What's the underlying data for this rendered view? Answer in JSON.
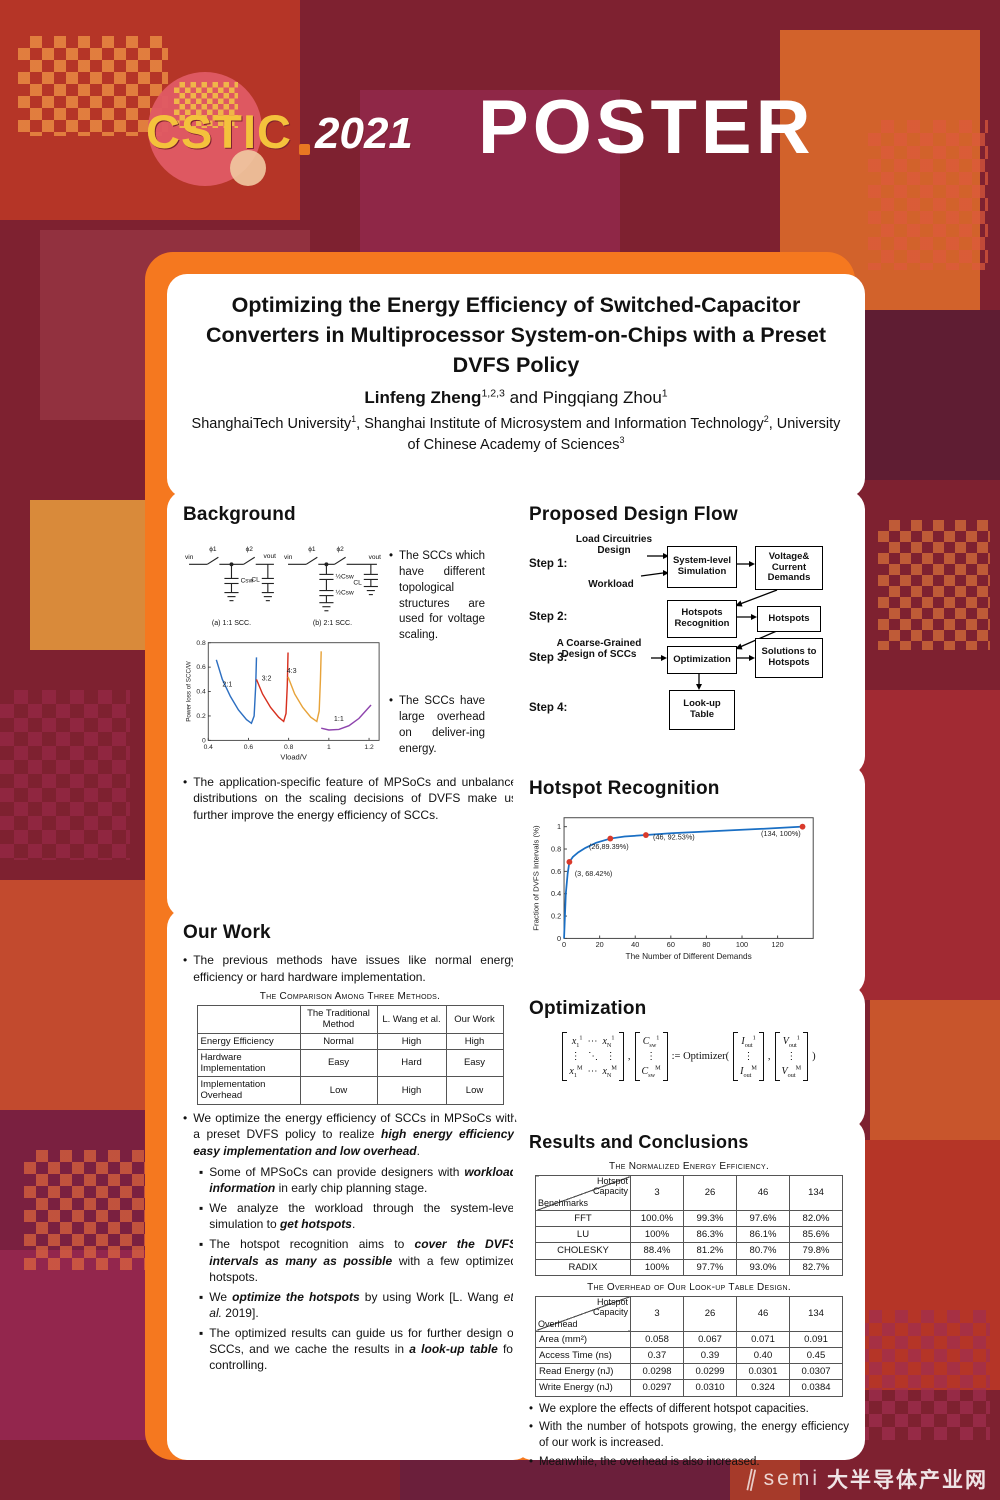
{
  "banner": {
    "logo_text": "CSTIC",
    "logo_year": "2021",
    "poster_label": "POSTER"
  },
  "watermark": {
    "brand": "semi",
    "text": "大半导体产业网"
  },
  "title_block": {
    "title": "Optimizing the Energy Efficiency of Switched-Capacitor Converters in Multiprocessor System-on-Chips with a Preset DVFS Policy",
    "authors_html": "<b>Linfeng Zheng</b><sup>1,2,3</sup> and Pingqiang Zhou<sup>1</sup>",
    "affiliations_html": "ShanghaiTech University<sup>1</sup>, Shanghai Institute of Microsystem and Information Technology<sup>2</sup>, University of Chinese Academy of Sciences<sup>3</sup>"
  },
  "background": {
    "heading": "Background",
    "side_bullet1": "The SCCs which have different topological structures are used for voltage scaling.",
    "side_bullet2": "The SCCs have large overhead on deliver-ing energy.",
    "bottom_bullet": "The application-specific feature of MPSoCs and unbalance distributions on the scaling decisions of DVFS make us further improve the energy efficiency of SCCs.",
    "figure": {
      "vin": "vin",
      "vout": "vout",
      "phi1": "ϕ1",
      "phi2": "ϕ2",
      "csw": "Csw",
      "cl": "CL",
      "half_csw": "½Csw",
      "caption_a": "(a) 1:1 SCC.",
      "caption_b": "(b) 2:1 SCC."
    }
  },
  "our_work": {
    "heading": "Our Work",
    "bullet1": "The previous methods have issues like normal energy efficiency or hard hardware implementation.",
    "table": {
      "caption": "The Comparison Among Three Methods.",
      "columns": [
        "",
        "The Traditional Method",
        "L. Wang et al.",
        "Our Work"
      ],
      "rows": [
        [
          "Energy Efficiency",
          "Normal",
          "High",
          "High"
        ],
        [
          "Hardware Implementation",
          "Easy",
          "Hard",
          "Easy"
        ],
        [
          "Implementation Overhead",
          "Low",
          "High",
          "Low"
        ]
      ]
    },
    "bullet2_html": "We optimize the energy efficiency of SCCs in MPSoCs with a preset DVFS policy to realize <b><i>high energy efficiency, easy implementation and low overhead</i></b>.",
    "sub_bullets_html": [
      "Some of MPSoCs can provide designers with <b><i>workload information</i></b> in early chip planning stage.",
      "We analyze the workload through the system-level simulation to <b><i>get hotspots</i></b>.",
      "The hotspot recognition aims to <b><i>cover the DVFS intervals as many as possible</i></b> with a few optimized hotspots.",
      "We <b><i>optimize the hotspots</i></b> by using Work [L. Wang <i>et. al.</i> 2019].",
      "The optimized results can guide us for further design of SCCs, and we cache the results in <b><i>a look-up table</i></b> for controlling."
    ]
  },
  "design_flow": {
    "heading": "Proposed Design Flow",
    "steps": [
      "Step 1:",
      "Step 2:",
      "Step 3:",
      "Step 4:"
    ],
    "labels": {
      "load": "Load Circuitries Design",
      "workload": "Workload",
      "coarse": "A Coarse-Grained Design of SCCs"
    },
    "boxes": {
      "sys_sim": "System-level Simulation",
      "voltage": "Voltage& Current Demands",
      "recognition": "Hotspots Recognition",
      "hotspots": "Hotspots",
      "optimization": "Optimization",
      "solutions": "Solutions to Hotspots",
      "lookup": "Look-up Table"
    }
  },
  "hotspot_section": {
    "heading": "Hotspot Recognition"
  },
  "optimization": {
    "heading": "Optimization",
    "matrix_x": [
      "<i>x</i><sub>1</sub><sup>1</sup>&nbsp;&nbsp;⋯&nbsp;&nbsp;<i>x</i><sub>N</sub><sup>1</sup>",
      "⋮&nbsp;&nbsp;&nbsp;⋱&nbsp;&nbsp;&nbsp;⋮",
      "<i>x</i><sub>1</sub><sup>M</sup>&nbsp;&nbsp;⋯&nbsp;&nbsp;<i>x</i><sub>N</sub><sup>M</sup>"
    ],
    "matrix_c": [
      "<i>C</i><sub>sw</sub><sup>1</sup>",
      "⋮",
      "<i>C</i><sub>sw</sub><sup>M</sup>"
    ],
    "comma": ",",
    "assign": ":= Optimizer(",
    "matrix_i": [
      "<i>I</i><sub>out</sub><sup>1</sup>",
      "⋮",
      "<i>I</i><sub>out</sub><sup>M</sup>"
    ],
    "matrix_v": [
      "<i>V</i><sub>out</sub><sup>1</sup>",
      "⋮",
      "<i>V</i><sub>out</sub><sup>M</sup>"
    ],
    "close": ")"
  },
  "results": {
    "heading": "Results and Conclusions",
    "energy_table": {
      "caption": "The Normalized Energy Efficiency.",
      "corner_top": "Hotspot Capacity",
      "corner_bottom": "Benchmarks",
      "columns": [
        "3",
        "26",
        "46",
        "134"
      ],
      "rows": [
        [
          "FFT",
          "100.0%",
          "99.3%",
          "97.6%",
          "82.0%"
        ],
        [
          "LU",
          "100%",
          "86.3%",
          "86.1%",
          "85.6%"
        ],
        [
          "CHOLESKY",
          "88.4%",
          "81.2%",
          "80.7%",
          "79.8%"
        ],
        [
          "RADIX",
          "100%",
          "97.7%",
          "93.0%",
          "82.7%"
        ]
      ]
    },
    "overhead_table": {
      "caption": "The Overhead of Our Look-up Table Design.",
      "corner_top": "Hotspot Capacity",
      "corner_bottom": "Overhead",
      "columns": [
        "3",
        "26",
        "46",
        "134"
      ],
      "rows": [
        [
          "Area (mm²)",
          "0.058",
          "0.067",
          "0.071",
          "0.091"
        ],
        [
          "Access Time (ns)",
          "0.37",
          "0.39",
          "0.40",
          "0.45"
        ],
        [
          "Read Energy (nJ)",
          "0.0298",
          "0.0299",
          "0.0301",
          "0.0307"
        ],
        [
          "Write Energy (nJ)",
          "0.0297",
          "0.0310",
          "0.324",
          "0.0384"
        ]
      ]
    },
    "bullets": [
      "We explore the effects of different hotspot capacities.",
      "With the number of hotspots growing, the energy efficiency of our work is increased.",
      "Meanwhile, the overhead is also increased."
    ]
  },
  "chart_data": [
    {
      "id": "power_loss",
      "type": "line",
      "title": "",
      "xlabel": "Vload/V",
      "ylabel": "Power loss of SCC/W",
      "xlim": [
        0.4,
        1.25
      ],
      "ylim": [
        0,
        0.8
      ],
      "xticks": [
        0.4,
        0.6,
        0.8,
        1,
        1.2
      ],
      "yticks": [
        0,
        0.2,
        0.4,
        0.6,
        0.8
      ],
      "series": [
        {
          "name": "2:1",
          "color": "#2d6fc1",
          "points": [
            [
              0.44,
              0.66
            ],
            [
              0.47,
              0.5
            ],
            [
              0.51,
              0.36
            ],
            [
              0.55,
              0.25
            ],
            [
              0.59,
              0.17
            ],
            [
              0.615,
              0.14
            ],
            [
              0.628,
              0.2
            ],
            [
              0.636,
              0.45
            ],
            [
              0.64,
              0.68
            ]
          ]
        },
        {
          "name": "3:2",
          "color": "#d7301f",
          "points": [
            [
              0.64,
              0.5
            ],
            [
              0.67,
              0.38
            ],
            [
              0.71,
              0.27
            ],
            [
              0.75,
              0.19
            ],
            [
              0.775,
              0.155
            ],
            [
              0.787,
              0.22
            ],
            [
              0.793,
              0.45
            ],
            [
              0.797,
              0.72
            ]
          ]
        },
        {
          "name": "4:3",
          "color": "#e7a33a",
          "points": [
            [
              0.797,
              0.52
            ],
            [
              0.83,
              0.38
            ],
            [
              0.87,
              0.27
            ],
            [
              0.91,
              0.19
            ],
            [
              0.94,
              0.155
            ],
            [
              0.952,
              0.24
            ],
            [
              0.958,
              0.5
            ],
            [
              0.962,
              0.73
            ]
          ]
        },
        {
          "name": "1:1",
          "color": "#8e44ad",
          "points": [
            [
              0.962,
              0.1
            ],
            [
              1.0,
              0.085
            ],
            [
              1.05,
              0.09
            ],
            [
              1.1,
              0.12
            ],
            [
              1.15,
              0.18
            ],
            [
              1.21,
              0.29
            ]
          ]
        }
      ],
      "annotations": [
        {
          "text": "2:1",
          "x": 0.495,
          "y": 0.44
        },
        {
          "text": "3:2",
          "x": 0.69,
          "y": 0.49
        },
        {
          "text": "4:3",
          "x": 0.815,
          "y": 0.55
        },
        {
          "text": "1:1",
          "x": 1.05,
          "y": 0.16
        }
      ]
    },
    {
      "id": "hotspot_curve",
      "type": "line",
      "xlabel": "The Number of Different Demands",
      "ylabel": "Fraction of DVFS Intervals (%)",
      "xlim": [
        0,
        140
      ],
      "ylim": [
        0,
        1.08
      ],
      "xticks": [
        0,
        20,
        40,
        60,
        80,
        100,
        120
      ],
      "yticks": [
        0,
        0.2,
        0.4,
        0.6,
        0.8,
        1
      ],
      "line_color": "#1a6fc4",
      "marker_color": "#d93a2b",
      "points": [
        [
          0,
          0
        ],
        [
          1,
          0.4
        ],
        [
          2,
          0.58
        ],
        [
          3,
          0.6842
        ],
        [
          5,
          0.73
        ],
        [
          8,
          0.77
        ],
        [
          12,
          0.81
        ],
        [
          18,
          0.855
        ],
        [
          26,
          0.8939
        ],
        [
          34,
          0.912
        ],
        [
          46,
          0.9253
        ],
        [
          60,
          0.941
        ],
        [
          80,
          0.957
        ],
        [
          100,
          0.972
        ],
        [
          120,
          0.988
        ],
        [
          134,
          1.0
        ]
      ],
      "markers": [
        {
          "x": 3,
          "y": 0.6842,
          "label": "(3, 68.42%)",
          "lx": 6,
          "ly": 0.56,
          "anchor": "start"
        },
        {
          "x": 26,
          "y": 0.8939,
          "label": "(26,89.39%)",
          "lx": 14,
          "ly": 0.8,
          "anchor": "start"
        },
        {
          "x": 46,
          "y": 0.9253,
          "label": "(46, 92.53%)",
          "lx": 50,
          "ly": 0.885,
          "anchor": "start"
        },
        {
          "x": 134,
          "y": 1.0,
          "label": "(134, 100%)",
          "lx": 133,
          "ly": 0.915,
          "anchor": "end"
        }
      ]
    }
  ]
}
